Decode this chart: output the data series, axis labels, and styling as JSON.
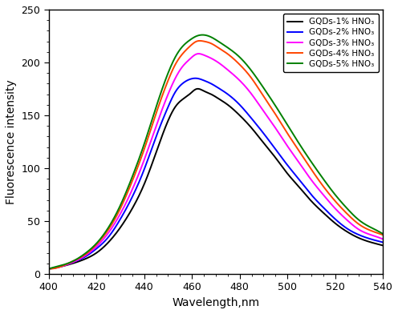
{
  "wavelength_start": 400,
  "wavelength_end": 540,
  "xlim": [
    400,
    540
  ],
  "ylim": [
    0,
    250
  ],
  "xlabel": "Wavelength,nm",
  "ylabel": "Fluorescence intensity",
  "xticks": [
    400,
    420,
    440,
    460,
    480,
    500,
    520,
    540
  ],
  "yticks": [
    0,
    50,
    100,
    150,
    200,
    250
  ],
  "series": [
    {
      "label": "GQDs-1% HNO₃",
      "color": "#000000",
      "points_wl": [
        400,
        405,
        410,
        415,
        420,
        425,
        430,
        435,
        440,
        445,
        450,
        453,
        456,
        459,
        462,
        465,
        468,
        471,
        475,
        480,
        485,
        490,
        495,
        500,
        505,
        510,
        515,
        520,
        525,
        530,
        535,
        540
      ],
      "points_val": [
        5,
        7,
        10,
        14,
        20,
        30,
        44,
        62,
        85,
        115,
        145,
        158,
        165,
        170,
        175,
        173,
        170,
        166,
        160,
        150,
        138,
        124,
        110,
        95,
        82,
        69,
        58,
        48,
        40,
        34,
        30,
        27
      ]
    },
    {
      "label": "GQDs-2% HNO₃",
      "color": "#0000ff",
      "points_wl": [
        400,
        405,
        410,
        415,
        420,
        425,
        430,
        435,
        440,
        445,
        450,
        453,
        456,
        459,
        462,
        465,
        468,
        471,
        475,
        480,
        485,
        490,
        495,
        500,
        505,
        510,
        515,
        520,
        525,
        530,
        535,
        540
      ],
      "points_val": [
        5,
        7,
        11,
        16,
        24,
        35,
        52,
        73,
        99,
        130,
        158,
        172,
        180,
        184,
        185,
        183,
        180,
        176,
        170,
        160,
        147,
        133,
        118,
        103,
        89,
        75,
        63,
        52,
        43,
        37,
        33,
        30
      ]
    },
    {
      "label": "GQDs-3% HNO₃",
      "color": "#ff00ff",
      "points_wl": [
        400,
        405,
        410,
        415,
        420,
        425,
        430,
        435,
        440,
        445,
        450,
        453,
        456,
        459,
        462,
        465,
        468,
        471,
        475,
        480,
        485,
        490,
        495,
        500,
        505,
        510,
        515,
        520,
        525,
        530,
        535,
        540
      ],
      "points_val": [
        5,
        7,
        11,
        17,
        26,
        39,
        57,
        80,
        108,
        140,
        170,
        185,
        196,
        203,
        208,
        207,
        204,
        200,
        193,
        183,
        170,
        154,
        138,
        121,
        105,
        89,
        75,
        62,
        51,
        42,
        37,
        33
      ]
    },
    {
      "label": "GQDs-4% HNO₃",
      "color": "#ff4500",
      "points_wl": [
        400,
        405,
        410,
        415,
        420,
        425,
        430,
        435,
        440,
        445,
        450,
        453,
        456,
        459,
        462,
        465,
        468,
        471,
        475,
        480,
        485,
        490,
        495,
        500,
        505,
        510,
        515,
        520,
        525,
        530,
        535,
        540
      ],
      "points_val": [
        5,
        7,
        12,
        18,
        28,
        42,
        62,
        88,
        118,
        152,
        183,
        198,
        208,
        215,
        220,
        220,
        218,
        214,
        208,
        198,
        185,
        168,
        151,
        133,
        116,
        99,
        83,
        69,
        57,
        47,
        41,
        37
      ]
    },
    {
      "label": "GQDs-5% HNO₃",
      "color": "#008000",
      "points_wl": [
        400,
        405,
        410,
        415,
        420,
        425,
        430,
        435,
        440,
        445,
        450,
        453,
        456,
        459,
        462,
        465,
        468,
        471,
        475,
        480,
        485,
        490,
        495,
        500,
        505,
        510,
        515,
        520,
        525,
        530,
        535,
        540
      ],
      "points_val": [
        5,
        8,
        12,
        19,
        29,
        44,
        65,
        92,
        123,
        158,
        190,
        205,
        215,
        221,
        225,
        226,
        224,
        220,
        214,
        205,
        192,
        176,
        159,
        141,
        123,
        106,
        90,
        75,
        62,
        51,
        44,
        38
      ]
    }
  ],
  "legend_fontsize": 7.5,
  "axis_fontsize": 10,
  "tick_fontsize": 9,
  "linewidth": 1.4,
  "figure_width": 4.96,
  "figure_height": 3.92,
  "dpi": 100
}
